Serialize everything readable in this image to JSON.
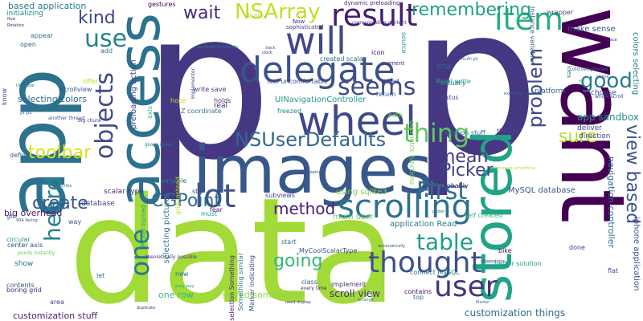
{
  "words": [
    {
      "text": "p",
      "color": "#453781"
    },
    {
      "text": "p",
      "color": "#453781"
    },
    {
      "text": "data",
      "color": "#a2da37"
    },
    {
      "text": "app",
      "color": "#2c718e"
    },
    {
      "text": "want",
      "color": "#440154"
    },
    {
      "text": "images",
      "color": "#38588c"
    },
    {
      "text": "access",
      "color": "#2c728e"
    },
    {
      "text": "stored",
      "color": "#20a486"
    },
    {
      "text": "thought",
      "color": "#3b528b"
    },
    {
      "text": "scrolling",
      "color": "#2c718e"
    },
    {
      "text": "delegate",
      "color": "#3b528b"
    },
    {
      "text": "wheel",
      "color": "#3e4989"
    },
    {
      "text": "will",
      "color": "#3e4989"
    },
    {
      "text": "result",
      "color": "#481b6d"
    },
    {
      "text": "item",
      "color": "#28ae80"
    },
    {
      "text": "lot",
      "color": "#3b528b"
    },
    {
      "text": "user",
      "color": "#46337e"
    },
    {
      "text": "table",
      "color": "#1f9f88"
    },
    {
      "text": "First",
      "color": "#2e6e8e"
    },
    {
      "text": "thing",
      "color": "#5ec962"
    },
    {
      "text": "NSUserDefaults",
      "color": "#31688e"
    },
    {
      "text": "seems",
      "color": "#3e4989"
    },
    {
      "text": "NSArray",
      "color": "#c2df23"
    },
    {
      "text": "objects",
      "color": "#3e4a89"
    },
    {
      "text": "use",
      "color": "#25838e"
    },
    {
      "text": "one",
      "color": "#2a788e"
    },
    {
      "text": "heard",
      "color": "#26828e"
    },
    {
      "text": "good",
      "color": "#297b8e"
    },
    {
      "text": "problem",
      "color": "#3e4a89"
    },
    {
      "text": "view based",
      "color": "#3b528b"
    },
    {
      "text": "remembering",
      "color": "#1fa187"
    },
    {
      "text": "Picker",
      "color": "#414487"
    },
    {
      "text": "mean",
      "color": "#453781"
    },
    {
      "text": "sure",
      "color": "#b8de29"
    },
    {
      "text": "method",
      "color": "#481f70"
    },
    {
      "text": "going",
      "color": "#35b779"
    },
    {
      "text": "create",
      "color": "#39568c"
    },
    {
      "text": "CGPoint",
      "color": "#2f6c8e"
    },
    {
      "text": "toolbar",
      "color": "#d8e219"
    },
    {
      "text": "wait",
      "color": "#472a7a"
    },
    {
      "text": "kind",
      "color": "#3f4788"
    },
    {
      "text": "app sandbox",
      "color": "#21918c"
    },
    {
      "text": "scroll view",
      "color": "#472d7b"
    },
    {
      "text": "customization stuff",
      "color": "#481f70"
    },
    {
      "text": "customization things",
      "color": "#2f6c8e"
    },
    {
      "text": "one row",
      "color": "#35b779"
    },
    {
      "text": "stored somewhere",
      "color": "#90d743"
    },
    {
      "text": "selecting colors",
      "color": "#31688e"
    },
    {
      "text": "based application",
      "color": "#2a788e"
    },
    {
      "text": "initializing",
      "color": "#24868e"
    },
    {
      "text": "multi user",
      "color": "#6ccd5a"
    },
    {
      "text": "application Read",
      "color": "#297b8e"
    },
    {
      "text": "MySQL database",
      "color": "#3b528b"
    },
    {
      "text": "using sqlite3",
      "color": "#7fd34e"
    },
    {
      "text": "big overhead",
      "color": "#481a6c"
    },
    {
      "text": "scalar type",
      "color": "#46327e"
    },
    {
      "text": "database",
      "color": "#414487"
    },
    {
      "text": "UINavigationController",
      "color": "#1f988b"
    },
    {
      "text": "navigation controller",
      "color": "#2c718e"
    },
    {
      "text": "iphone application",
      "color": "#3b528b"
    },
    {
      "text": "colors selecting",
      "color": "#26828e"
    },
    {
      "text": "selecting pictures",
      "color": "#2a788e"
    },
    {
      "text": "preloading action",
      "color": "#3e4989"
    },
    {
      "text": "dynamic preloading",
      "color": "#482878"
    },
    {
      "text": "created scalar",
      "color": "#2d708e"
    },
    {
      "text": "make sense",
      "color": "#3b528b"
    },
    {
      "text": "choose",
      "color": "#3e4a89"
    },
    {
      "text": "platform",
      "color": "#31688e"
    },
    {
      "text": "deliver",
      "color": "#3f4889"
    },
    {
      "text": "direction",
      "color": "#3f4788"
    },
    {
      "text": "rotation stuff",
      "color": "#2e6f8e"
    },
    {
      "text": "Probably",
      "color": "#482979"
    },
    {
      "text": "self created",
      "color": "#35b779"
    },
    {
      "text": "better solution",
      "color": "#20a386"
    },
    {
      "text": "connect MySQL",
      "color": "#2a768e"
    },
    {
      "text": "contains",
      "color": "#471365"
    },
    {
      "text": "Read write",
      "color": "#1fa088"
    },
    {
      "text": "write save",
      "color": "#46327e"
    },
    {
      "text": "hope",
      "color": "#c8e020"
    },
    {
      "text": "holds",
      "color": "#472d7b"
    },
    {
      "text": "Z coordinate",
      "color": "#2a788e"
    },
    {
      "text": "real",
      "color": "#482173"
    },
    {
      "text": "feel uncomfortable",
      "color": "#414487"
    },
    {
      "text": "rolled",
      "color": "#46327e"
    },
    {
      "text": "freezed",
      "color": "#23888e"
    },
    {
      "text": "path",
      "color": "#6ece58"
    },
    {
      "text": "return",
      "color": "#31688e"
    },
    {
      "text": "status",
      "color": "#3b528b"
    },
    {
      "text": "actually",
      "color": "#277f8e"
    },
    {
      "text": "icon",
      "color": "#471164"
    },
    {
      "text": "moment",
      "color": "#482878"
    },
    {
      "text": "sophisticated",
      "color": "#3f4788"
    },
    {
      "text": "display",
      "color": "#9bd93c"
    },
    {
      "text": "gestures",
      "color": "#440154"
    },
    {
      "text": "appear",
      "color": "#2d708e"
    },
    {
      "text": "open",
      "color": "#365d8d"
    },
    {
      "text": "offer",
      "color": "#c2df23"
    },
    {
      "text": "scrollview",
      "color": "#38588c"
    },
    {
      "text": "define",
      "color": "#34608d"
    },
    {
      "text": "go",
      "color": "#3d4e8a"
    },
    {
      "text": "show",
      "color": "#2c718e"
    },
    {
      "text": "contents",
      "color": "#3b528b"
    },
    {
      "text": "boring grid",
      "color": "#482878"
    },
    {
      "text": "center axis",
      "color": "#3e4989"
    },
    {
      "text": "circular",
      "color": "#1f968b"
    },
    {
      "text": "area",
      "color": "#3e4989"
    },
    {
      "text": "let",
      "color": "#2d708e"
    },
    {
      "text": "new",
      "color": "#2f6c8e"
    },
    {
      "text": "must",
      "color": "#20a486"
    },
    {
      "text": "fear",
      "color": "#481a6c"
    },
    {
      "text": "start",
      "color": "#2c728e"
    },
    {
      "text": "done",
      "color": "#414487"
    },
    {
      "text": "bike",
      "color": "#471063"
    },
    {
      "text": "flat",
      "color": "#3e4a89"
    },
    {
      "text": "still",
      "color": "#3b528b"
    },
    {
      "text": "variable",
      "color": "#2a768e"
    },
    {
      "text": "class",
      "color": "#38588c"
    },
    {
      "text": "top",
      "color": "#2c718e"
    },
    {
      "text": "way",
      "color": "#39568c"
    },
    {
      "text": "subviews",
      "color": "#3f4788"
    },
    {
      "text": "implement",
      "color": "#46327e"
    },
    {
      "text": "wrapper",
      "color": "#414487"
    },
    {
      "text": "add",
      "color": "#2c718e"
    },
    {
      "text": "though",
      "color": "#3e4989"
    },
    {
      "text": "BTW",
      "color": "#2f6c8e"
    },
    {
      "text": "Now",
      "color": "#472d7b"
    },
    {
      "text": "MyCoolScalarType",
      "color": "#3b528b"
    },
    {
      "text": "geometric functions",
      "color": "#7ad151"
    },
    {
      "text": "theoretically possible",
      "color": "#46337e"
    },
    {
      "text": "Something similar",
      "color": "#2a788e"
    },
    {
      "text": "Marker indicating",
      "color": "#3e4989"
    },
    {
      "text": "selection Something",
      "color": "#482878"
    },
    {
      "text": "Picker turned",
      "color": "#20a386"
    },
    {
      "text": "grid Instead",
      "color": "#c2df23"
    },
    {
      "text": "instance variable",
      "color": "#3b528b"
    },
    {
      "text": "source",
      "color": "#21918c"
    },
    {
      "text": "axis",
      "color": "#35b779"
    },
    {
      "text": "points instantly",
      "color": "#5ec962"
    },
    {
      "text": "easy way",
      "color": "#20a486"
    },
    {
      "text": "every time",
      "color": "#482878"
    },
    {
      "text": "corresponding content",
      "color": "#414487"
    },
    {
      "text": "idea",
      "color": "#31688e"
    },
    {
      "text": "phone",
      "color": "#3b528b"
    },
    {
      "text": "file",
      "color": "#22a884"
    },
    {
      "text": "whole scroll",
      "color": "#3e4989"
    },
    {
      "text": "old telephones",
      "color": "#2e6e8e"
    },
    {
      "text": "another thread",
      "color": "#3b528b"
    },
    {
      "text": "given index",
      "color": "#2a788e"
    },
    {
      "text": "big chunk",
      "color": "#46327e"
    },
    {
      "text": "pl p2",
      "color": "#2a788e"
    },
    {
      "text": "planing phase",
      "color": "#3b528b"
    },
    {
      "text": "multi p2",
      "color": "#31688e"
    },
    {
      "text": "UIToolbar",
      "color": "#2c718e"
    },
    {
      "text": "Rotation",
      "color": "#481f70"
    },
    {
      "text": "Row",
      "color": "#414487"
    },
    {
      "text": "Marker",
      "color": "#2a788e"
    },
    {
      "text": "know",
      "color": "#3b528b"
    },
    {
      "text": "90A facing",
      "color": "#3e4989"
    },
    {
      "text": "space",
      "color": "#482878"
    },
    {
      "text": "NSData",
      "color": "#20a486"
    },
    {
      "text": "slack",
      "color": "#3b528b"
    },
    {
      "text": "describe",
      "color": "#2a788e"
    },
    {
      "text": "duplicate",
      "color": "#46327e"
    },
    {
      "text": "developing",
      "color": "#3e4989"
    },
    {
      "text": "expected",
      "color": "#31688e"
    },
    {
      "text": "picker",
      "color": "#2c718e"
    },
    {
      "text": "automatically",
      "color": "#3b528b"
    },
    {
      "text": "suggestions",
      "color": "#414487"
    },
    {
      "text": "arrange",
      "color": "#2a788e"
    },
    {
      "text": "need display",
      "color": "#482878"
    },
    {
      "text": "customize something",
      "color": "#b8de29"
    },
    {
      "text": "hundreds thousands",
      "color": "#2a788e"
    },
    {
      "text": "Implementer",
      "color": "#3b528b"
    },
    {
      "text": "clock",
      "color": "#46327e"
    }
  ]
}
